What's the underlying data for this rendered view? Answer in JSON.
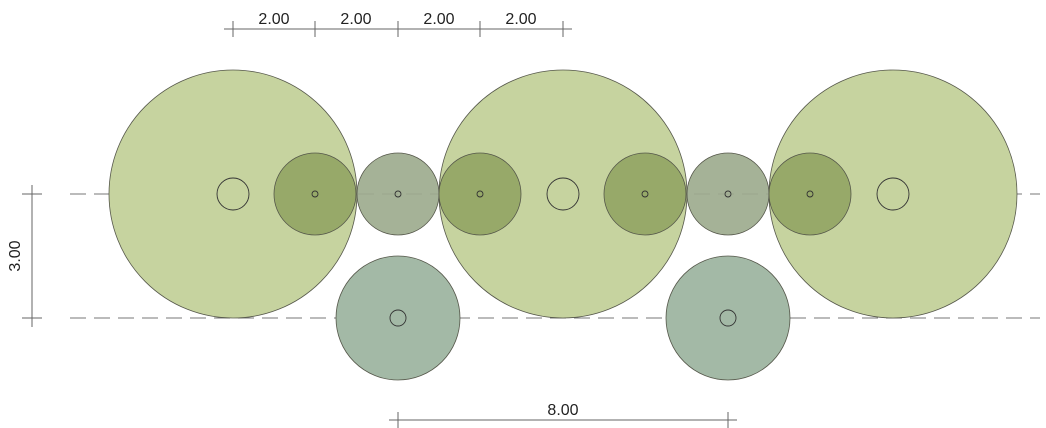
{
  "diagram": {
    "colors": {
      "large_circle_fill": "#c6d39f",
      "medium_circle_fill": "#93a564",
      "small_circle_fill": "#9dab8e",
      "lower_circle_fill": "#a3b9a6",
      "stroke": "#55574a",
      "dimension_line": "#666666",
      "axis_line": "#777777"
    },
    "dimensions": {
      "top_spacings": [
        "2.00",
        "2.00",
        "2.00",
        "2.00"
      ],
      "vertical_spacing": "3.00",
      "bottom_spacing": "8.00"
    },
    "axes": {
      "style": "dashed",
      "count": 2
    },
    "circles_count": 13
  }
}
